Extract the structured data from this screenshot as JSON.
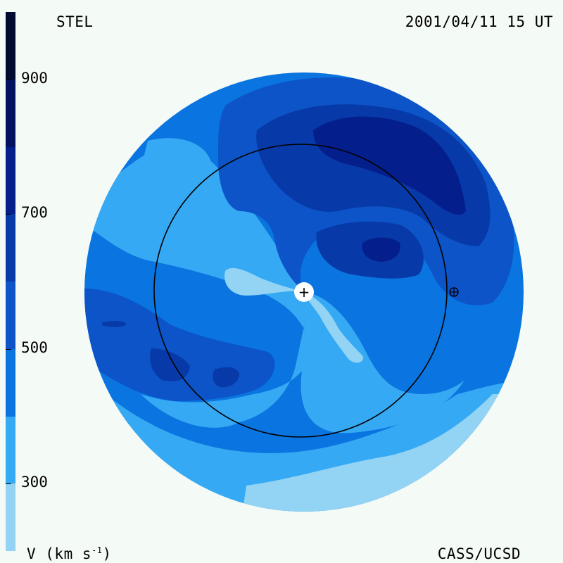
{
  "header": {
    "station": "STEL",
    "datetime": "2001/04/11 15 UT"
  },
  "footer": {
    "org": "CASS/UCSD",
    "unit_prefix": "V (km s",
    "unit_sup": "-1",
    "unit_suffix": ")"
  },
  "colorbar": {
    "levels": [
      {
        "min": 200,
        "max": 300,
        "color": "#93d3f4"
      },
      {
        "min": 300,
        "max": 400,
        "color": "#35a9f3"
      },
      {
        "min": 400,
        "max": 500,
        "color": "#0a74e0"
      },
      {
        "min": 500,
        "max": 600,
        "color": "#0c54c8"
      },
      {
        "min": 600,
        "max": 700,
        "color": "#073aa8"
      },
      {
        "min": 700,
        "max": 800,
        "color": "#041f8c"
      },
      {
        "min": 800,
        "max": 900,
        "color": "#021260"
      },
      {
        "min": 900,
        "max": 1000,
        "color": "#010a30"
      }
    ],
    "range": [
      200,
      1000
    ],
    "tick_labels": [
      "300",
      "500",
      "700",
      "900"
    ]
  },
  "map": {
    "description_colors": {
      "background": "#f4faf6",
      "disk_base": "#0a74e0",
      "earth_orbit": "#000000"
    },
    "sun_marker": "+",
    "earth_marker": "⊕"
  }
}
